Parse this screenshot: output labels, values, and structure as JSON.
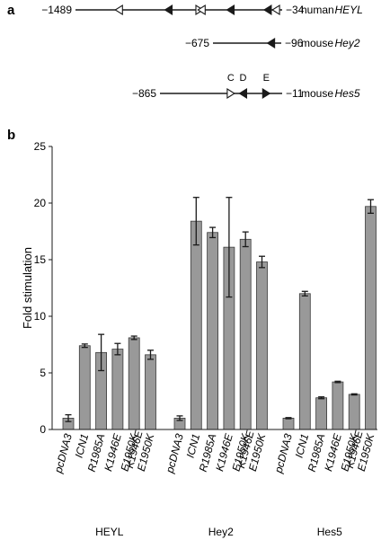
{
  "panel_a": {
    "label": "a",
    "constructs": [
      {
        "left": "−1489",
        "right": "−34",
        "species": "human",
        "gene": "HEYL",
        "sites": [
          {
            "pos": 0.21,
            "dir": "left",
            "fill": "open"
          },
          {
            "pos": 0.45,
            "dir": "left",
            "fill": "filled"
          },
          {
            "pos": 0.6,
            "dir": "right",
            "fill": "open"
          },
          {
            "pos": 0.61,
            "dir": "left",
            "fill": "open"
          },
          {
            "pos": 0.75,
            "dir": "left",
            "fill": "filled"
          },
          {
            "pos": 0.93,
            "dir": "left",
            "fill": "filled"
          },
          {
            "pos": 0.97,
            "dir": "left",
            "fill": "open"
          }
        ]
      },
      {
        "left": "−675",
        "right": "−96",
        "species": "mouse",
        "gene": "Hey2",
        "sites": [
          {
            "pos": 0.85,
            "dir": "left",
            "fill": "filled"
          }
        ]
      },
      {
        "left": "−865",
        "right": "−11",
        "species": "mouse",
        "gene": "Hes5",
        "site_labels": [
          "C",
          "D",
          "E"
        ],
        "sites": [
          {
            "pos": 0.58,
            "dir": "right",
            "fill": "open"
          },
          {
            "pos": 0.68,
            "dir": "left",
            "fill": "filled"
          },
          {
            "pos": 0.87,
            "dir": "right",
            "fill": "filled"
          }
        ]
      }
    ]
  },
  "panel_b": {
    "label": "b"
  },
  "chart_data": {
    "type": "bar",
    "title": "",
    "ylabel": "Fold stimulation",
    "xlabel": "",
    "ylim": [
      0,
      25
    ],
    "yticks": [
      0,
      5,
      10,
      15,
      20,
      25
    ],
    "grid": false,
    "bar_color": "#999999",
    "groups": [
      {
        "name": "HEYL",
        "bars": [
          {
            "label": "pcDNA3",
            "value": 1.0,
            "error": 0.3
          },
          {
            "label": "ICN1",
            "value": 7.4,
            "error": 0.15
          },
          {
            "label": "R1985A",
            "value": 6.8,
            "error": 1.6
          },
          {
            "label": "K1946E",
            "value": 7.1,
            "error": 0.5
          },
          {
            "label": "E1950K",
            "value": 8.1,
            "error": 0.15
          },
          {
            "label": "K1946E E1950K",
            "value": 6.6,
            "error": 0.4
          }
        ]
      },
      {
        "name": "Hey2",
        "bars": [
          {
            "label": "pcDNA3",
            "value": 1.0,
            "error": 0.2
          },
          {
            "label": "ICN1",
            "value": 18.4,
            "error": 2.1
          },
          {
            "label": "R1985A",
            "value": 17.4,
            "error": 0.45
          },
          {
            "label": "K1946E",
            "value": 16.1,
            "error": 4.4
          },
          {
            "label": "E1950K",
            "value": 16.8,
            "error": 0.65
          },
          {
            "label": "K1946E E1950K",
            "value": 14.8,
            "error": 0.5
          }
        ]
      },
      {
        "name": "Hes5",
        "bars": [
          {
            "label": "pcDNA3",
            "value": 1.0,
            "error": 0.05
          },
          {
            "label": "ICN1",
            "value": 12.0,
            "error": 0.2
          },
          {
            "label": "R1985A",
            "value": 2.8,
            "error": 0.08
          },
          {
            "label": "K1946E",
            "value": 4.2,
            "error": 0.06
          },
          {
            "label": "E1950K",
            "value": 3.1,
            "error": 0.05
          },
          {
            "label": "K1946E E1950K",
            "value": 19.7,
            "error": 0.6
          }
        ]
      }
    ]
  }
}
